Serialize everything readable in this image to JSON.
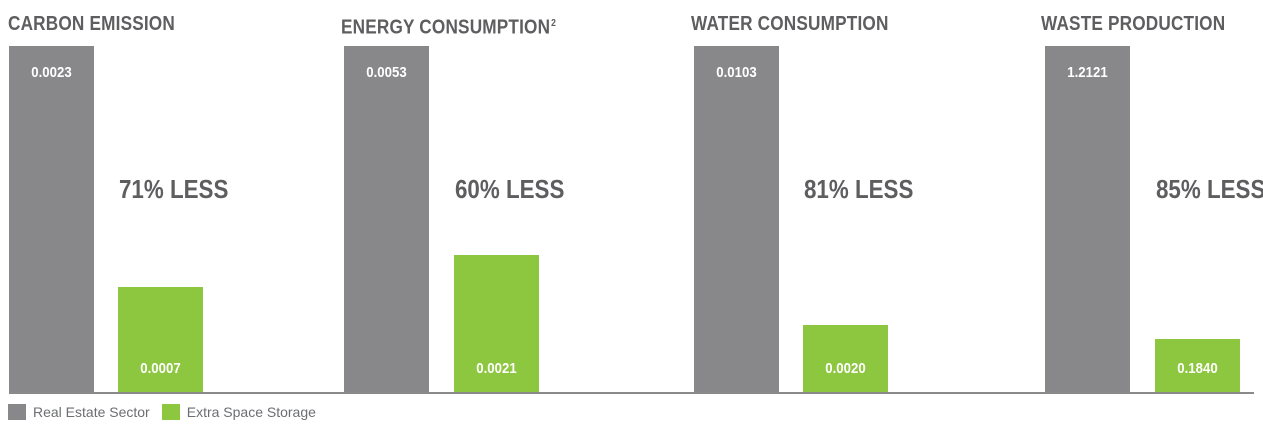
{
  "colors": {
    "real_estate": "#888789",
    "extra_space": "#8dc63f"
  },
  "legend": {
    "items": [
      {
        "label": "Real Estate Sector",
        "color": "#888789"
      },
      {
        "label": "Extra Space Storage",
        "color": "#8dc63f"
      }
    ]
  },
  "chart_data": [
    {
      "type": "bar",
      "title": "CARBON EMISSION",
      "title_superscript": "",
      "categories": [
        "Real Estate Sector",
        "Extra Space Storage"
      ],
      "values": [
        0.0023,
        0.0007
      ],
      "value_labels": [
        "0.0023",
        "0.0007"
      ],
      "annotation": "71% LESS",
      "legend_position": "bottom-left"
    },
    {
      "type": "bar",
      "title": "ENERGY CONSUMPTION",
      "title_superscript": "2",
      "categories": [
        "Real Estate Sector",
        "Extra Space Storage"
      ],
      "values": [
        0.0053,
        0.0021
      ],
      "value_labels": [
        "0.0053",
        "0.0021"
      ],
      "annotation": "60% LESS",
      "legend_position": "bottom-left"
    },
    {
      "type": "bar",
      "title": "WATER CONSUMPTION",
      "title_superscript": "",
      "categories": [
        "Real Estate Sector",
        "Extra Space Storage"
      ],
      "values": [
        0.0103,
        0.002
      ],
      "value_labels": [
        "0.0103",
        "0.0020"
      ],
      "annotation": "81% LESS",
      "legend_position": "bottom-left"
    },
    {
      "type": "bar",
      "title": "WASTE PRODUCTION",
      "title_superscript": "",
      "categories": [
        "Real Estate Sector",
        "Extra Space Storage"
      ],
      "values": [
        1.2121,
        0.184
      ],
      "value_labels": [
        "1.2121",
        "0.1840"
      ],
      "annotation": "85% LESS",
      "legend_position": "bottom-left"
    }
  ]
}
